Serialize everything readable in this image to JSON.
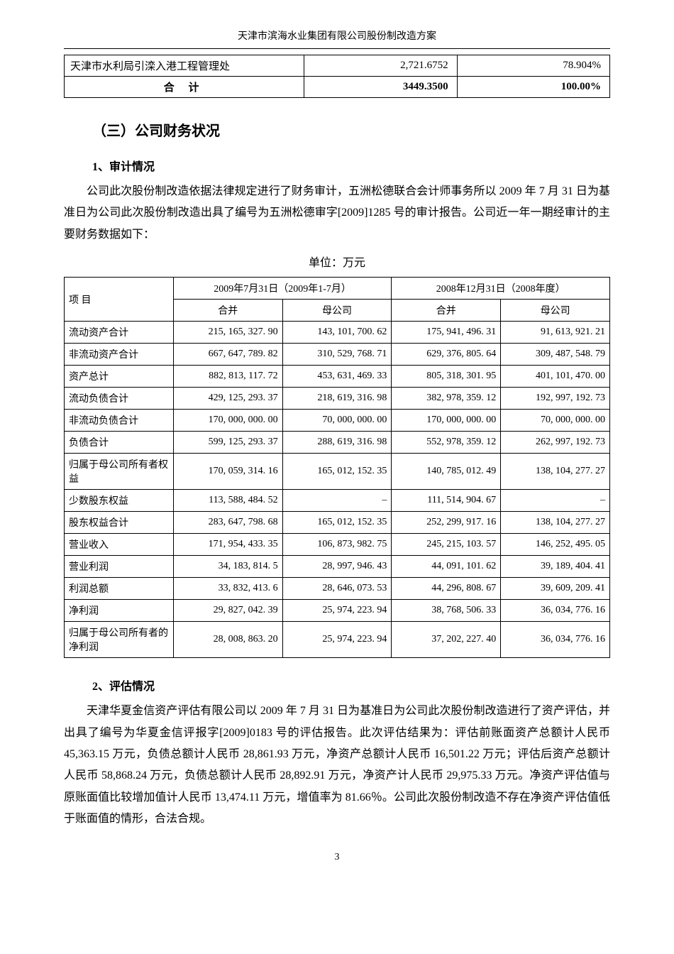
{
  "header_title": "天津市滨海水业集团有限公司股份制改造方案",
  "table1": {
    "row": {
      "name": "天津市水利局引滦入港工程管理处",
      "val": "2,721.6752",
      "pct": "78.904%"
    },
    "total": {
      "label": "合 计",
      "val": "3449.3500",
      "pct": "100.00%"
    }
  },
  "section3_title": "（三）公司财务状况",
  "sec1_title": "1、审计情况",
  "para1": "公司此次股份制改造依据法律规定进行了财务审计，五洲松德联合会计师事务所以 2009 年 7 月 31 日为基准日为公司此次股份制改造出具了编号为五洲松德审字[2009]1285 号的审计报告。公司近一年一期经审计的主要财务数据如下：",
  "unit_label": "单位：万元",
  "t2_headers": {
    "item": "项  目",
    "p1": "2009年7月31日（2009年1-7月）",
    "p2": "2008年12月31日（2008年度）",
    "consol": "合并",
    "parent": "母公司"
  },
  "rows": [
    {
      "label": "流动资产合计",
      "a": "215, 165, 327. 90",
      "b": "143, 101, 700. 62",
      "c": "175, 941, 496. 31",
      "d": "91, 613, 921. 21"
    },
    {
      "label": "非流动资产合计",
      "a": "667, 647, 789. 82",
      "b": "310, 529, 768. 71",
      "c": "629, 376, 805. 64",
      "d": "309, 487, 548. 79"
    },
    {
      "label": "资产总计",
      "a": "882, 813, 117. 72",
      "b": "453, 631, 469. 33",
      "c": "805, 318, 301. 95",
      "d": "401, 101, 470. 00"
    },
    {
      "label": "流动负债合计",
      "a": "429, 125, 293. 37",
      "b": "218, 619, 316. 98",
      "c": "382, 978, 359. 12",
      "d": "192, 997, 192. 73"
    },
    {
      "label": "非流动负债合计",
      "a": "170, 000, 000. 00",
      "b": "70, 000, 000. 00",
      "c": "170, 000, 000. 00",
      "d": "70, 000, 000. 00"
    },
    {
      "label": "负债合计",
      "a": "599, 125, 293. 37",
      "b": "288, 619, 316. 98",
      "c": "552, 978, 359. 12",
      "d": "262, 997, 192. 73"
    },
    {
      "label": "归属于母公司所有者权益",
      "a": "170, 059, 314. 16",
      "b": "165, 012, 152. 35",
      "c": "140, 785, 012. 49",
      "d": "138, 104, 277. 27"
    },
    {
      "label": "少数股东权益",
      "a": "113, 588, 484. 52",
      "b": "–",
      "c": "111, 514, 904. 67",
      "d": "–"
    },
    {
      "label": "股东权益合计",
      "a": "283, 647, 798. 68",
      "b": "165, 012, 152. 35",
      "c": "252, 299, 917. 16",
      "d": "138, 104, 277. 27"
    },
    {
      "label": "营业收入",
      "a": "171, 954, 433. 35",
      "b": "106, 873, 982. 75",
      "c": "245, 215, 103. 57",
      "d": "146, 252, 495. 05"
    },
    {
      "label": "营业利润",
      "a": "34, 183, 814. 5",
      "b": "28, 997, 946. 43",
      "c": "44, 091, 101. 62",
      "d": "39, 189, 404. 41"
    },
    {
      "label": "利润总额",
      "a": "33, 832, 413. 6",
      "b": "28, 646, 073. 53",
      "c": "44, 296, 808. 67",
      "d": "39, 609, 209. 41"
    },
    {
      "label": "净利润",
      "a": "29, 827, 042. 39",
      "b": "25, 974, 223. 94",
      "c": "38, 768, 506. 33",
      "d": "36, 034, 776. 16"
    },
    {
      "label": "归属于母公司所有者的净利润",
      "a": "28, 008, 863. 20",
      "b": "25, 974, 223. 94",
      "c": "37, 202, 227. 40",
      "d": "36, 034, 776. 16"
    }
  ],
  "sec2_title": "2、评估情况",
  "para2": "天津华夏金信资产评估有限公司以 2009 年 7 月 31 日为基准日为公司此次股份制改造进行了资产评估，并出具了编号为华夏金信评报字[2009]0183 号的评估报告。此次评估结果为：评估前账面资产总额计人民币 45,363.15 万元，负债总额计人民币 28,861.93 万元，净资产总额计人民币 16,501.22 万元；评估后资产总额计人民币 58,868.24 万元，负债总额计人民币 28,892.91 万元，净资产计人民币 29,975.33 万元。净资产评估值与原账面值比较增加值计人民币 13,474.11 万元，增值率为 81.66％。公司此次股份制改造不存在净资产评估值低于账面值的情形，合法合规。",
  "page_num": "3"
}
